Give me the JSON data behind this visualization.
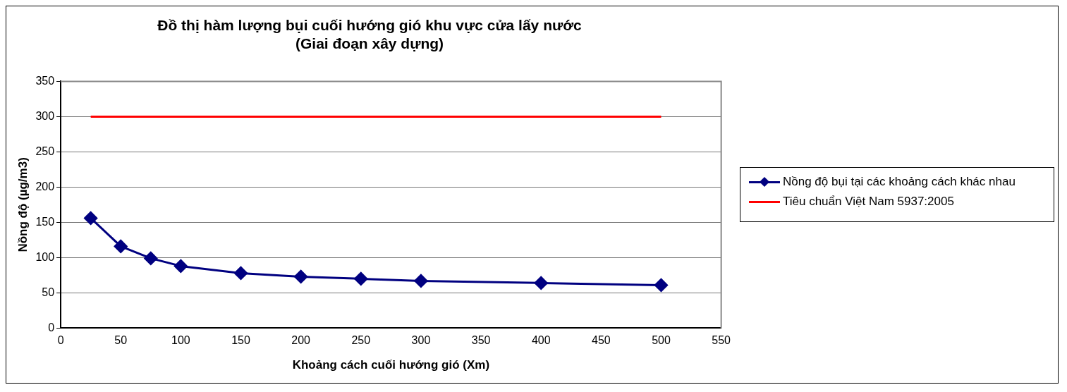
{
  "chart_data": {
    "type": "line",
    "title": "Đồ thị hàm lượng bụi cuối hướng gió khu vực cửa lấy nước\n(Giai đoạn xây dựng)",
    "xlabel": "Khoảng cách cuối hướng gió (Xm)",
    "ylabel": "Nồng độ (µg/m3)",
    "xlim": [
      0,
      550
    ],
    "xticks": [
      0,
      50,
      100,
      150,
      200,
      250,
      300,
      350,
      400,
      450,
      500,
      550
    ],
    "ylim": [
      0,
      350
    ],
    "yticks": [
      0,
      50,
      100,
      150,
      200,
      250,
      300,
      350
    ],
    "grid": "y",
    "legend": "right",
    "series": [
      {
        "name": "Nồng độ bụi tại các khoảng cách khác nhau",
        "color": "#000080",
        "marker": "diamond",
        "x": [
          25,
          50,
          75,
          100,
          150,
          200,
          250,
          300,
          400,
          500
        ],
        "values": [
          156,
          116,
          99,
          88,
          78,
          73,
          70,
          67,
          64,
          61
        ]
      },
      {
        "name": "Tiêu chuẩn Việt Nam 5937:2005",
        "color": "#ff0000",
        "marker": "none",
        "x": [
          25,
          500
        ],
        "values": [
          300,
          300
        ]
      }
    ]
  }
}
